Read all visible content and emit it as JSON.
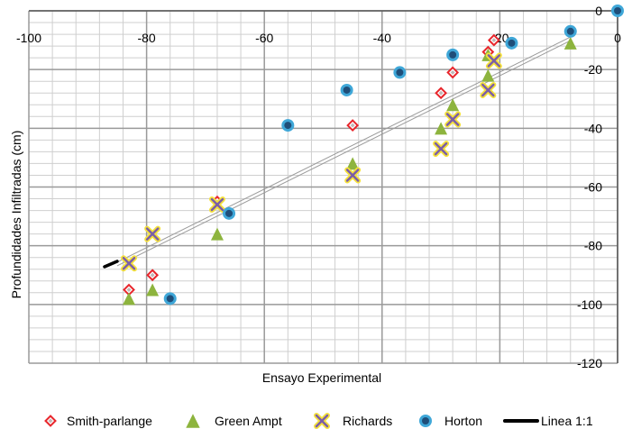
{
  "chart_data": {
    "type": "scatter",
    "title": "",
    "xlabel": "Ensayo Experimental",
    "ylabel": "Profundidades Infiltradas (cm)",
    "xlim": [
      -100,
      0
    ],
    "ylim": [
      -120,
      0
    ],
    "x_ticks": [
      "-100",
      "-80",
      "-60",
      "-40",
      "-20",
      "0"
    ],
    "y_ticks": [
      "0",
      "-20",
      "-40",
      "-60",
      "-80",
      "-100",
      "-120"
    ],
    "grid": true,
    "legend_position": "bottom",
    "series": [
      {
        "name": "Smith-parlange",
        "marker": "diamond",
        "color": "#e8262c",
        "points": [
          [
            -8,
            -7
          ],
          [
            -21,
            -10
          ],
          [
            -22,
            -14
          ],
          [
            -28,
            -21
          ],
          [
            -30,
            -28
          ],
          [
            -45,
            -39
          ],
          [
            -68,
            -65
          ],
          [
            -79,
            -90
          ],
          [
            -83,
            -95
          ]
        ]
      },
      {
        "name": "Green Ampt",
        "marker": "triangle",
        "color": "#8db43e",
        "points": [
          [
            -8,
            -11
          ],
          [
            -22,
            -15
          ],
          [
            -22,
            -22
          ],
          [
            -28,
            -32
          ],
          [
            -30,
            -40
          ],
          [
            -45,
            -52
          ],
          [
            -68,
            -76
          ],
          [
            -79,
            -95
          ],
          [
            -83,
            -98
          ]
        ]
      },
      {
        "name": "Richards",
        "marker": "x",
        "color": "#7b5ea7",
        "points": [
          [
            -21,
            -17
          ],
          [
            -22,
            -27
          ],
          [
            -28,
            -37
          ],
          [
            -30,
            -47
          ],
          [
            -45,
            -56
          ],
          [
            -68,
            -66
          ],
          [
            -79,
            -76
          ],
          [
            -83,
            -86
          ]
        ]
      },
      {
        "name": "Horton",
        "marker": "circle",
        "color": "#1f4e79",
        "points": [
          [
            0,
            0
          ],
          [
            -8,
            -7
          ],
          [
            -18,
            -11
          ],
          [
            -28,
            -15
          ],
          [
            -37,
            -21
          ],
          [
            -46,
            -27
          ],
          [
            -56,
            -39
          ],
          [
            -66,
            -69
          ],
          [
            -76,
            -98
          ]
        ]
      }
    ],
    "reference_line": {
      "name": "Linea 1:1",
      "points": [
        [
          -85,
          -85
        ],
        [
          -8,
          -8
        ]
      ],
      "color": "#000000"
    }
  }
}
